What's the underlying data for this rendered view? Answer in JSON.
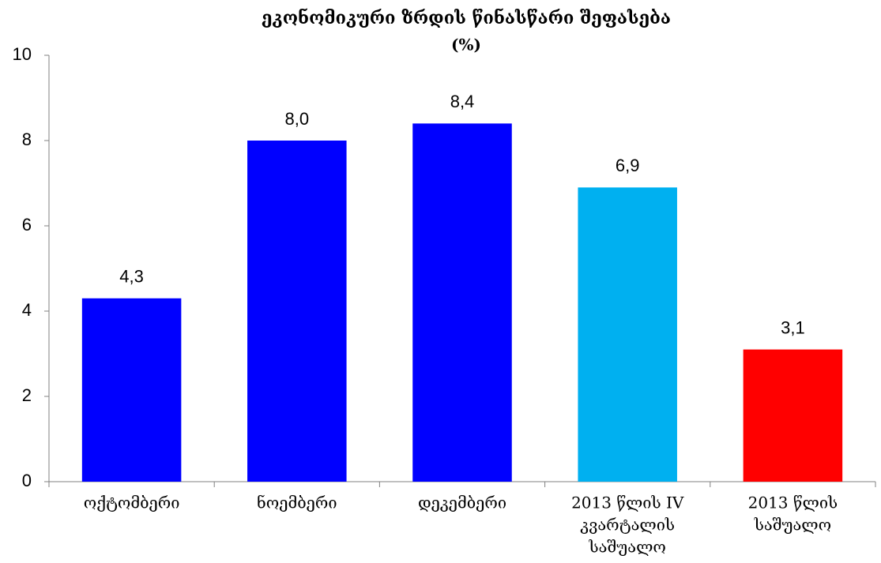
{
  "chart_data": {
    "type": "bar",
    "title": "ეკონომიკური ზრდის წინასწარი შეფასება",
    "subtitle": "(%)",
    "categories": [
      [
        "ოქტომბერი"
      ],
      [
        "ნოემბერი"
      ],
      [
        "დეკემბერი"
      ],
      [
        "2013 წლის IV",
        "კვარტალის",
        "საშუალო"
      ],
      [
        "2013 წლის",
        "საშუალო"
      ]
    ],
    "values": [
      4.3,
      8.0,
      8.4,
      6.9,
      3.1
    ],
    "value_labels": [
      "4,3",
      "8,0",
      "8,4",
      "6,9",
      "3,1"
    ],
    "colors": [
      "#0000ff",
      "#0000ff",
      "#0000ff",
      "#00b0f0",
      "#ff0000"
    ],
    "ylim": [
      0,
      10
    ],
    "yticks": [
      0,
      2,
      4,
      6,
      8,
      10
    ],
    "grid": false
  }
}
